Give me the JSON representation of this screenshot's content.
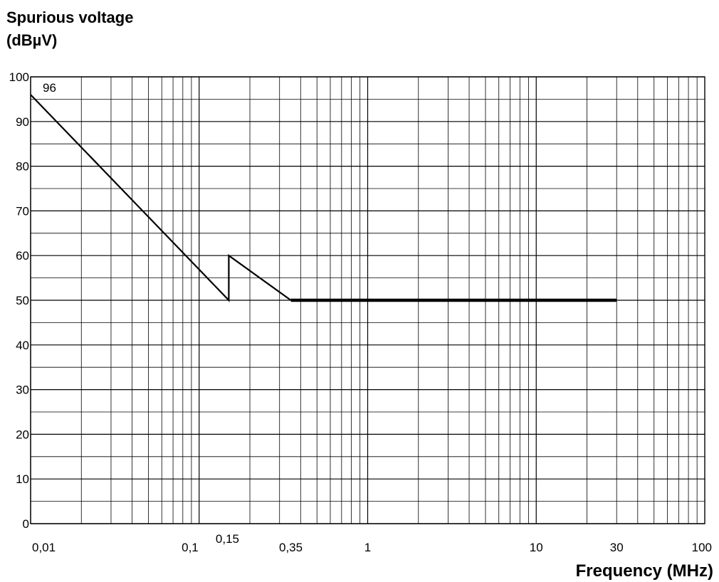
{
  "chart_data": {
    "type": "line",
    "ylabel_lines": [
      "Spurious voltage",
      "(dBµV)"
    ],
    "xlabel": "Frequency (MHz)",
    "x_scale": "log",
    "xlim": [
      0.01,
      100
    ],
    "ylim": [
      0,
      100
    ],
    "grid": true,
    "y_ticks": [
      "0",
      "10",
      "20",
      "30",
      "40",
      "50",
      "60",
      "70",
      "80",
      "90",
      "100"
    ],
    "x_ticks": [
      {
        "value": 0.01,
        "label": "0,01"
      },
      {
        "value": 0.1,
        "label": "0,1"
      },
      {
        "value": 0.15,
        "label": "0,15"
      },
      {
        "value": 0.35,
        "label": "0,35"
      },
      {
        "value": 1,
        "label": "1"
      },
      {
        "value": 10,
        "label": "10"
      },
      {
        "value": 30,
        "label": "30"
      },
      {
        "value": 100,
        "label": "100"
      }
    ],
    "annotations": [
      {
        "text": "96",
        "x": 0.01,
        "y": 96
      }
    ],
    "series": [
      {
        "style": "thin",
        "points": [
          [
            0.01,
            96
          ],
          [
            0.15,
            50
          ],
          [
            0.15,
            60
          ],
          [
            0.35,
            50
          ]
        ]
      },
      {
        "style": "thick",
        "points": [
          [
            0.35,
            50
          ],
          [
            30,
            50
          ]
        ]
      }
    ]
  }
}
